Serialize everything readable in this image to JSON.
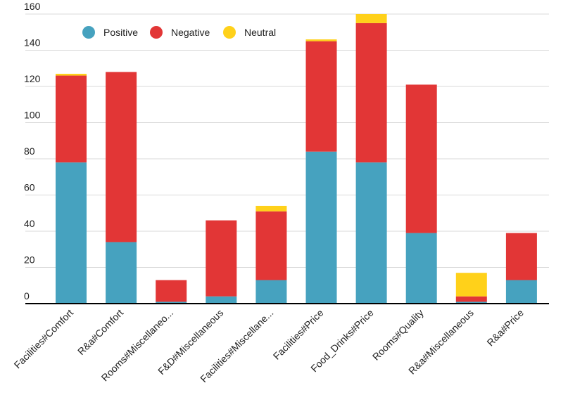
{
  "chart_data": {
    "type": "bar",
    "stacked": true,
    "title": "",
    "xlabel": "",
    "ylabel": "",
    "ylim": [
      0,
      160
    ],
    "yticks": [
      0,
      20,
      40,
      60,
      80,
      100,
      120,
      140,
      160
    ],
    "grid": true,
    "legend_position": "top-left",
    "categories": [
      "Facilities#Comfort",
      "R&a#Comfort",
      "Rooms#Miscellaneo...",
      "F&D#Miscellaneous",
      "Facilities#Miscellane...",
      "Facilities#Price",
      "Food_Drinks#Price",
      "Rooms#Quality",
      "R&a#Miscellaneous",
      "R&a#Price"
    ],
    "series": [
      {
        "name": "Positive",
        "color": "#46a2bf",
        "values": [
          78,
          34,
          1,
          4,
          13,
          84,
          78,
          39,
          1,
          13
        ]
      },
      {
        "name": "Negative",
        "color": "#e23636",
        "values": [
          48,
          94,
          12,
          42,
          38,
          61,
          77,
          82,
          3,
          26
        ]
      },
      {
        "name": "Neutral",
        "color": "#ffd11a",
        "values": [
          1,
          0,
          0,
          0,
          3,
          1,
          5,
          0,
          13,
          0
        ]
      }
    ]
  }
}
